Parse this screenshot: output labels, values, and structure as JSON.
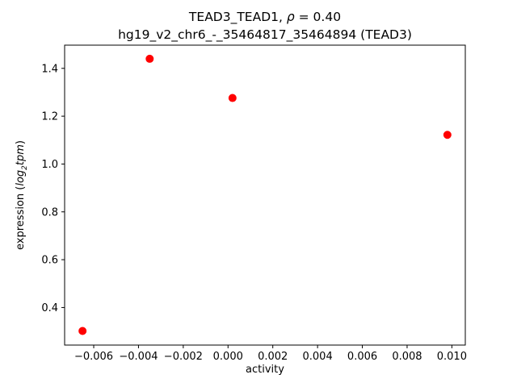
{
  "figure": {
    "title": {
      "line1_prefix": "TEAD3_TEAD1, ",
      "rho_symbol": "ρ",
      "line1_suffix": " = 0.40",
      "line2": "hg19_v2_chr6_-_35464817_35464894 (TEAD3)"
    },
    "ylabel_parts": {
      "prefix": "expression (",
      "log_text": "log",
      "log_sub": "2",
      "tpm_text": "tpm",
      "suffix": ")"
    }
  },
  "chart_data": {
    "type": "scatter",
    "title": "TEAD3_TEAD1, ρ = 0.40\nhg19_v2_chr6_-_35464817_35464894 (TEAD3)",
    "xlabel": "activity",
    "ylabel": "expression (log2 tpm)",
    "legend": "none",
    "grid": false,
    "marker_color": "#ff0000",
    "axis_color": "#000000",
    "xlim": [
      -0.0073,
      0.0106
    ],
    "ylim": [
      0.243,
      1.497
    ],
    "xticks": [
      -0.006,
      -0.004,
      -0.002,
      0.0,
      0.002,
      0.004,
      0.006,
      0.008,
      0.01
    ],
    "xtick_labels": [
      "−0.006",
      "−0.004",
      "−0.002",
      "0.000",
      "0.002",
      "0.004",
      "0.006",
      "0.008",
      "0.010"
    ],
    "yticks": [
      0.4,
      0.6,
      0.8,
      1.0,
      1.2,
      1.4
    ],
    "ytick_labels": [
      "0.4",
      "0.6",
      "0.8",
      "1.0",
      "1.2",
      "1.4"
    ],
    "points": [
      {
        "x": -0.0065,
        "y": 0.302
      },
      {
        "x": -0.0035,
        "y": 1.44
      },
      {
        "x": 0.0002,
        "y": 1.276
      },
      {
        "x": 0.0098,
        "y": 1.122
      }
    ]
  }
}
